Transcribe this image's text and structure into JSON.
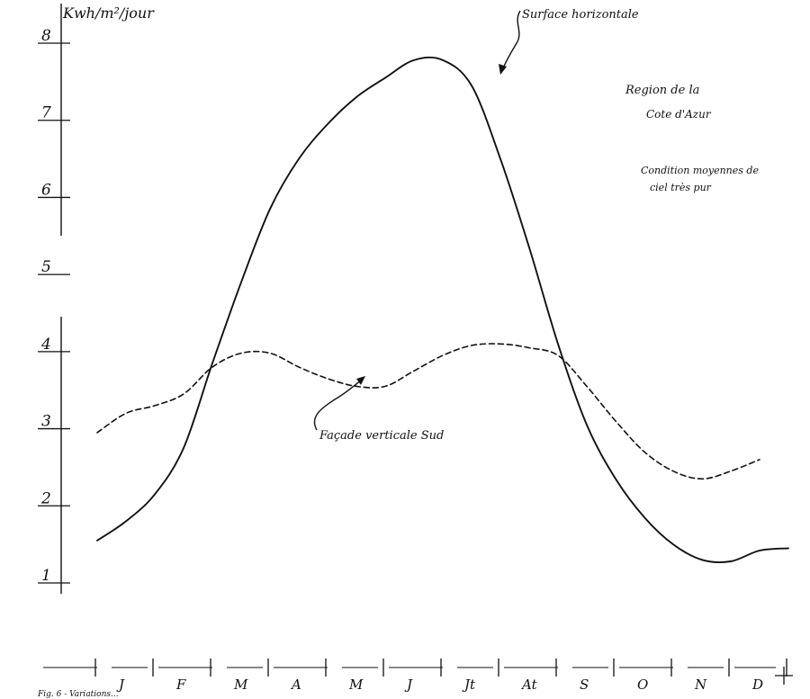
{
  "chart_data": {
    "type": "line",
    "title": "",
    "ylabel": "Kwh/m²/jour",
    "xlabel": "",
    "ylim": [
      1,
      8
    ],
    "yticks": [
      "1",
      "2",
      "3",
      "4",
      "5",
      "6",
      "7",
      "8"
    ],
    "categories": [
      "J",
      "F",
      "M",
      "A",
      "M",
      "J",
      "Jt",
      "At",
      "S",
      "O",
      "N",
      "D"
    ],
    "series": [
      {
        "name": "Surface horizontale",
        "style": "solid",
        "color": "#111111",
        "x": [
          0,
          0.5,
          1,
          1.5,
          2,
          2.5,
          3,
          3.5,
          4,
          4.5,
          5,
          5.5,
          6,
          6.5,
          7,
          7.5,
          8,
          8.5,
          9,
          9.5,
          10,
          10.5,
          11,
          11.5,
          12
        ],
        "values": [
          1.55,
          1.8,
          2.15,
          2.75,
          3.85,
          4.9,
          5.85,
          6.5,
          6.95,
          7.3,
          7.55,
          7.78,
          7.78,
          7.45,
          6.5,
          5.35,
          4.1,
          3.05,
          2.35,
          1.85,
          1.5,
          1.3,
          1.28,
          1.42,
          1.45
        ]
      },
      {
        "name": "Façade verticale Sud",
        "style": "dashed",
        "color": "#111111",
        "x": [
          0,
          0.5,
          1,
          1.5,
          2,
          2.5,
          3,
          3.5,
          4,
          4.5,
          5,
          5.5,
          6,
          6.5,
          7,
          7.5,
          8,
          8.5,
          9,
          9.5,
          10,
          10.5,
          11,
          11.5
        ],
        "values": [
          2.95,
          3.2,
          3.3,
          3.45,
          3.8,
          3.98,
          3.98,
          3.8,
          3.65,
          3.55,
          3.55,
          3.75,
          3.95,
          4.08,
          4.1,
          4.05,
          3.95,
          3.55,
          3.1,
          2.7,
          2.45,
          2.35,
          2.45,
          2.6
        ]
      }
    ],
    "annotations": {
      "region_line1": "Region de la",
      "region_line2": "Cote d'Azur",
      "conditions_line1": "Condition moyennes de",
      "conditions_line2": "ciel très pur",
      "curve_label_horizontal": "Surface horizontale",
      "curve_label_vertical": "Façade verticale Sud",
      "caption": "Fig. 6 - Variations..."
    },
    "grid": false,
    "legend": "none"
  }
}
